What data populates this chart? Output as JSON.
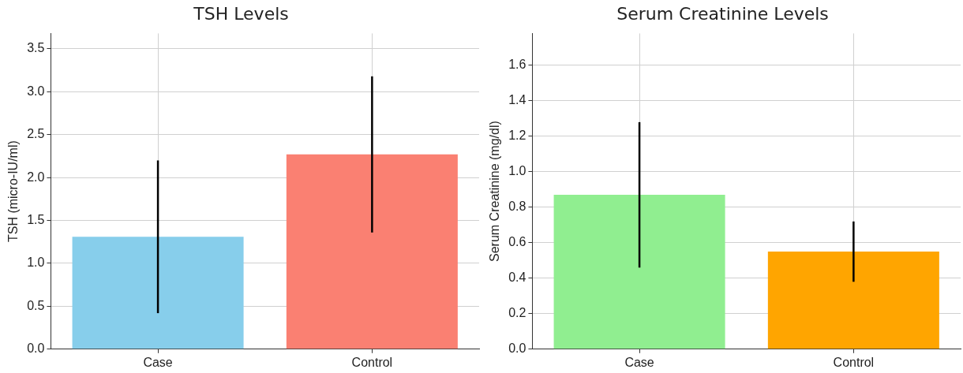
{
  "chart_data": [
    {
      "type": "bar",
      "title": "TSH Levels",
      "ylabel": "TSH (micro-IU/ml)",
      "categories": [
        "Case",
        "Control"
      ],
      "values": [
        1.31,
        2.27
      ],
      "errors": [
        0.89,
        0.91
      ],
      "colors": [
        "#87ceeb",
        "#fa8072"
      ],
      "ylim": [
        0,
        3.68
      ],
      "yticks": [
        {
          "value": 0,
          "label": "0.0"
        },
        {
          "value": 0.5,
          "label": "0.5"
        },
        {
          "value": 1,
          "label": "1.0"
        },
        {
          "value": 1.5,
          "label": "1.5"
        },
        {
          "value": 2,
          "label": "2.0"
        },
        {
          "value": 2.5,
          "label": "2.5"
        },
        {
          "value": 3,
          "label": "3.0"
        },
        {
          "value": 3.5,
          "label": "3.5"
        }
      ],
      "grid": true
    },
    {
      "type": "bar",
      "title": "Serum Creatinine Levels",
      "ylabel": "Serum Creatinine (mg/dl)",
      "categories": [
        "Case",
        "Control"
      ],
      "values": [
        0.87,
        0.55
      ],
      "errors": [
        0.41,
        0.17
      ],
      "colors": [
        "#90ee90",
        "#ffa500"
      ],
      "ylim": [
        0,
        1.78
      ],
      "yticks": [
        {
          "value": 0,
          "label": "0.0"
        },
        {
          "value": 0.2,
          "label": "0.2"
        },
        {
          "value": 0.4,
          "label": "0.4"
        },
        {
          "value": 0.6,
          "label": "0.6"
        },
        {
          "value": 0.8,
          "label": "0.8"
        },
        {
          "value": 1,
          "label": "1.0"
        },
        {
          "value": 1.2,
          "label": "1.2"
        },
        {
          "value": 1.4,
          "label": "1.4"
        },
        {
          "value": 1.6,
          "label": "1.6"
        }
      ],
      "grid": true
    }
  ]
}
